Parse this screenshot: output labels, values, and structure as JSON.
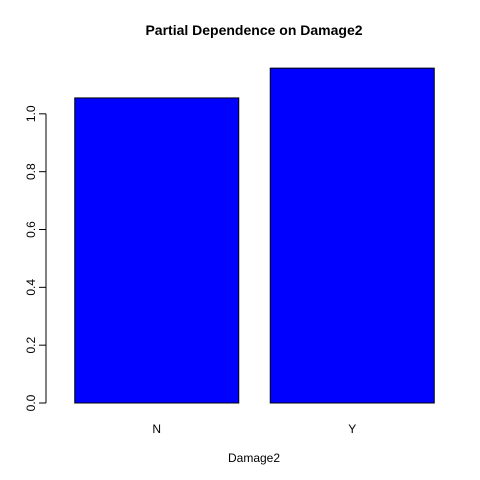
{
  "chart_data": {
    "type": "bar",
    "title": "Partial Dependence on Damage2",
    "xlabel": "Damage2",
    "ylabel": "",
    "categories": [
      "N",
      "Y"
    ],
    "values": [
      1.055,
      1.158
    ],
    "ylim": [
      0,
      1.2
    ],
    "yticks": [
      0.0,
      0.2,
      0.4,
      0.6,
      0.8,
      1.0
    ],
    "ytick_labels": [
      "0.0",
      "0.2",
      "0.4",
      "0.6",
      "0.8",
      "1.0"
    ],
    "grid": false,
    "legend": "none",
    "bar_color": "#0000ff",
    "bar_border_color": "#000000"
  }
}
